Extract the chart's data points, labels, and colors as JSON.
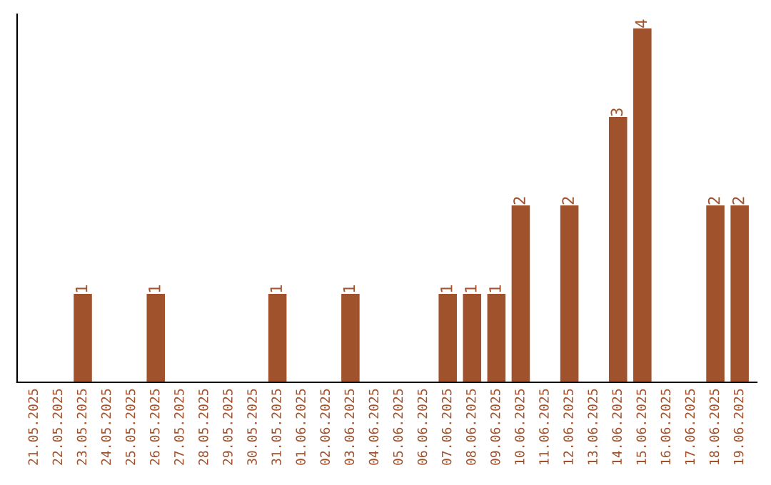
{
  "chart_data": {
    "type": "bar",
    "categories": [
      "21.05.2025",
      "22.05.2025",
      "23.05.2025",
      "24.05.2025",
      "25.05.2025",
      "26.05.2025",
      "27.05.2025",
      "28.05.2025",
      "29.05.2025",
      "30.05.2025",
      "31.05.2025",
      "01.06.2025",
      "02.06.2025",
      "03.06.2025",
      "04.06.2025",
      "05.06.2025",
      "06.06.2025",
      "07.06.2025",
      "08.06.2025",
      "09.06.2025",
      "10.06.2025",
      "11.06.2025",
      "12.06.2025",
      "13.06.2025",
      "14.06.2025",
      "15.06.2025",
      "16.06.2025",
      "17.06.2025",
      "18.06.2025",
      "19.06.2025"
    ],
    "values": [
      0,
      0,
      1,
      0,
      0,
      1,
      0,
      0,
      0,
      0,
      1,
      0,
      0,
      1,
      0,
      0,
      0,
      1,
      1,
      1,
      2,
      0,
      2,
      0,
      3,
      4,
      0,
      0,
      2,
      2
    ],
    "value_labels": [
      null,
      null,
      "1",
      null,
      null,
      "1",
      null,
      null,
      null,
      null,
      "1",
      null,
      null,
      "1",
      null,
      null,
      null,
      "1",
      "1",
      "1",
      "2",
      null,
      "2",
      null,
      "3",
      "4",
      null,
      null,
      "2",
      "2"
    ],
    "color": "#a0522d",
    "tick_labels": "x",
    "grid": false,
    "legend": false
  }
}
